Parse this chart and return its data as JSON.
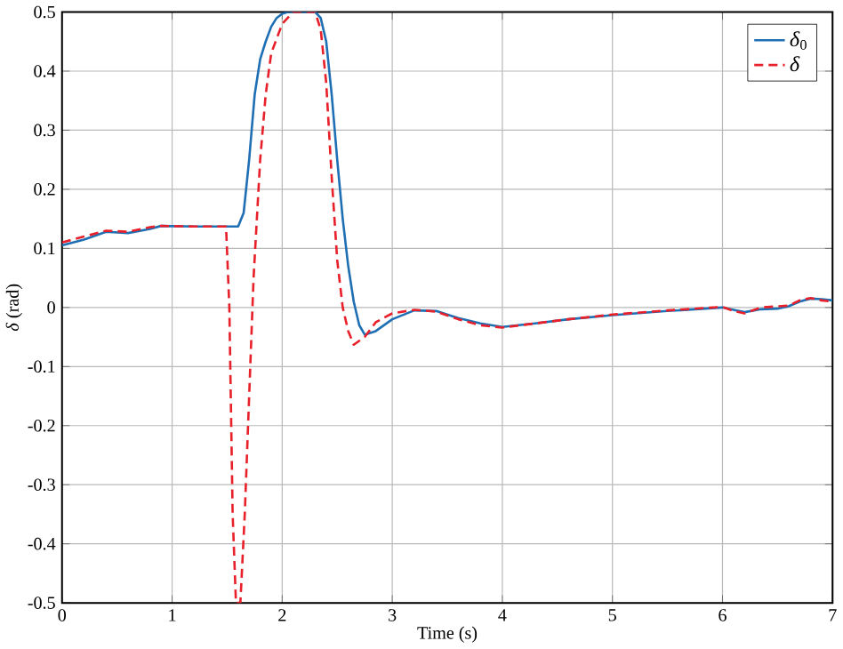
{
  "chart_data": {
    "type": "line",
    "xlabel": "Time (s)",
    "ylabel": "*δ* (rad)",
    "xlim": [
      0,
      7
    ],
    "ylim": [
      -0.5,
      0.5
    ],
    "xticks": [
      0,
      1,
      2,
      3,
      4,
      5,
      6,
      7
    ],
    "yticks": [
      -0.5,
      -0.4,
      -0.3,
      -0.2,
      -0.1,
      0,
      0.1,
      0.2,
      0.3,
      0.4,
      0.5
    ],
    "grid": true,
    "legend": "top right",
    "series": [
      {
        "name": "*δ*$_{0}$",
        "color": "#1f6fb4",
        "line_style": "solid",
        "x": [
          0,
          0.2,
          0.4,
          0.6,
          0.8,
          0.9,
          1.2,
          1.5,
          1.6,
          1.65,
          1.7,
          1.75,
          1.8,
          1.85,
          1.9,
          1.95,
          2.0,
          2.05,
          2.2,
          2.3,
          2.35,
          2.4,
          2.45,
          2.5,
          2.55,
          2.6,
          2.65,
          2.7,
          2.75,
          2.85,
          3.0,
          3.2,
          3.4,
          3.6,
          3.8,
          4.0,
          4.3,
          4.6,
          5.0,
          5.5,
          6.0,
          6.1,
          6.2,
          6.35,
          6.5,
          6.6,
          6.7,
          6.8,
          6.9,
          7.0
        ],
        "values": [
          0.105,
          0.115,
          0.128,
          0.126,
          0.133,
          0.138,
          0.137,
          0.137,
          0.137,
          0.16,
          0.25,
          0.36,
          0.42,
          0.45,
          0.475,
          0.49,
          0.497,
          0.5,
          0.5,
          0.5,
          0.49,
          0.45,
          0.36,
          0.25,
          0.15,
          0.07,
          0.01,
          -0.03,
          -0.046,
          -0.04,
          -0.02,
          -0.005,
          -0.006,
          -0.018,
          -0.027,
          -0.033,
          -0.027,
          -0.02,
          -0.013,
          -0.006,
          0.0,
          -0.004,
          -0.008,
          -0.003,
          -0.002,
          0.002,
          0.01,
          0.015,
          0.014,
          0.012
        ]
      },
      {
        "name": "*δ*",
        "color": "#e8202a",
        "line_style": "dashed",
        "x": [
          0,
          0.2,
          0.4,
          0.6,
          0.8,
          0.9,
          1.2,
          1.49,
          1.52,
          1.55,
          1.58,
          1.62,
          1.66,
          1.7,
          1.74,
          1.8,
          1.85,
          1.9,
          2.0,
          2.1,
          2.3,
          2.35,
          2.4,
          2.45,
          2.5,
          2.55,
          2.6,
          2.65,
          2.75,
          2.85,
          3.0,
          3.2,
          3.4,
          3.6,
          3.8,
          4.0,
          4.3,
          4.6,
          5.0,
          5.5,
          6.0,
          6.1,
          6.2,
          6.35,
          6.5,
          6.6,
          6.7,
          6.8,
          6.9,
          7.0
        ],
        "values": [
          0.11,
          0.12,
          0.13,
          0.128,
          0.136,
          0.138,
          0.137,
          0.137,
          0.0,
          -0.35,
          -0.5,
          -0.5,
          -0.35,
          -0.15,
          0.05,
          0.25,
          0.36,
          0.43,
          0.48,
          0.5,
          0.5,
          0.47,
          0.38,
          0.22,
          0.08,
          0.0,
          -0.04,
          -0.063,
          -0.05,
          -0.025,
          -0.01,
          -0.004,
          -0.007,
          -0.02,
          -0.03,
          -0.034,
          -0.027,
          -0.02,
          -0.012,
          -0.005,
          0.001,
          -0.006,
          -0.01,
          0.0,
          0.002,
          0.003,
          0.012,
          0.016,
          0.012,
          0.01
        ]
      }
    ]
  }
}
